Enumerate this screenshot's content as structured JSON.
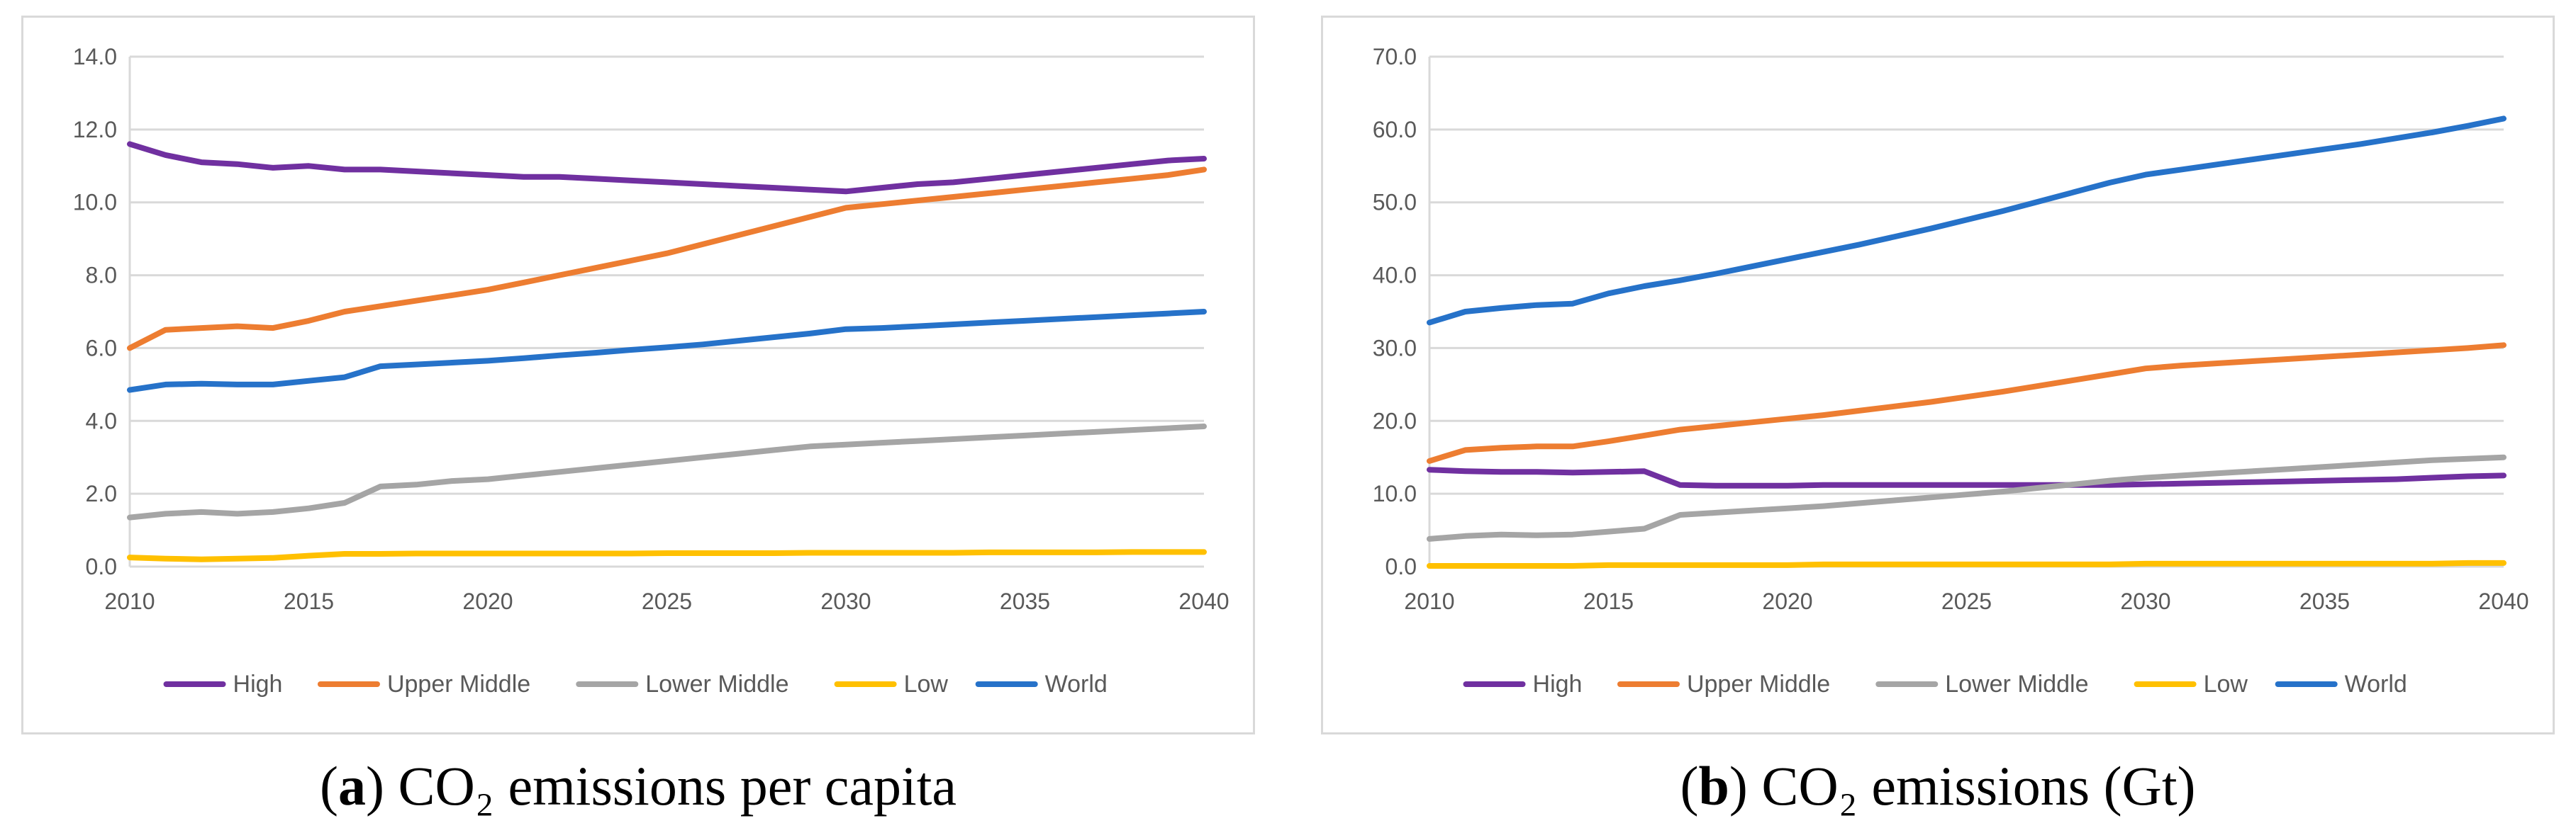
{
  "chart_data": [
    {
      "type": "line",
      "panel_letter": "a",
      "caption_text": "CO₂ emissions per capita",
      "x": [
        2010,
        2011,
        2012,
        2013,
        2014,
        2015,
        2016,
        2017,
        2018,
        2019,
        2020,
        2021,
        2022,
        2023,
        2024,
        2025,
        2026,
        2027,
        2028,
        2029,
        2030,
        2031,
        2032,
        2033,
        2034,
        2035,
        2036,
        2037,
        2038,
        2039,
        2040
      ],
      "xlim": [
        2010,
        2040
      ],
      "xticks": [
        "2010",
        "2015",
        "2020",
        "2025",
        "2030",
        "2035",
        "2040"
      ],
      "ylim": [
        0,
        14
      ],
      "yticks": [
        "0.0",
        "2.0",
        "4.0",
        "6.0",
        "8.0",
        "10.0",
        "12.0",
        "14.0"
      ],
      "grid": true,
      "legend_position": "bottom",
      "series": [
        {
          "name": "High",
          "color": "#7030a0",
          "values": [
            11.6,
            11.3,
            11.1,
            11.05,
            10.95,
            11.0,
            10.9,
            10.9,
            10.85,
            10.8,
            10.75,
            10.7,
            10.7,
            10.65,
            10.6,
            10.55,
            10.5,
            10.45,
            10.4,
            10.35,
            10.3,
            10.4,
            10.5,
            10.55,
            10.65,
            10.75,
            10.85,
            10.95,
            11.05,
            11.15,
            11.2
          ]
        },
        {
          "name": "Upper Middle",
          "color": "#ed7d31",
          "values": [
            6.0,
            6.5,
            6.55,
            6.6,
            6.55,
            6.75,
            7.0,
            7.15,
            7.3,
            7.45,
            7.6,
            7.8,
            8.0,
            8.2,
            8.4,
            8.6,
            8.85,
            9.1,
            9.35,
            9.6,
            9.85,
            9.95,
            10.05,
            10.15,
            10.25,
            10.35,
            10.45,
            10.55,
            10.65,
            10.75,
            10.9
          ]
        },
        {
          "name": "Lower Middle",
          "color": "#a5a5a5",
          "values": [
            1.35,
            1.45,
            1.5,
            1.45,
            1.5,
            1.6,
            1.75,
            2.2,
            2.25,
            2.35,
            2.4,
            2.5,
            2.6,
            2.7,
            2.8,
            2.9,
            3.0,
            3.1,
            3.2,
            3.3,
            3.35,
            3.4,
            3.45,
            3.5,
            3.55,
            3.6,
            3.65,
            3.7,
            3.75,
            3.8,
            3.85
          ]
        },
        {
          "name": "Low",
          "color": "#ffc000",
          "values": [
            0.25,
            0.22,
            0.2,
            0.22,
            0.24,
            0.3,
            0.35,
            0.35,
            0.36,
            0.36,
            0.36,
            0.36,
            0.36,
            0.36,
            0.36,
            0.37,
            0.37,
            0.37,
            0.37,
            0.38,
            0.38,
            0.38,
            0.38,
            0.38,
            0.39,
            0.39,
            0.39,
            0.39,
            0.4,
            0.4,
            0.4
          ]
        },
        {
          "name": "World",
          "color": "#2672c9",
          "values": [
            4.85,
            5.0,
            5.02,
            5.0,
            5.0,
            5.1,
            5.2,
            5.5,
            5.55,
            5.6,
            5.65,
            5.72,
            5.8,
            5.87,
            5.95,
            6.02,
            6.1,
            6.2,
            6.3,
            6.4,
            6.52,
            6.55,
            6.6,
            6.65,
            6.7,
            6.75,
            6.8,
            6.85,
            6.9,
            6.95,
            7.0
          ]
        }
      ]
    },
    {
      "type": "line",
      "panel_letter": "b",
      "caption_text": "CO₂ emissions (Gt)",
      "x": [
        2010,
        2011,
        2012,
        2013,
        2014,
        2015,
        2016,
        2017,
        2018,
        2019,
        2020,
        2021,
        2022,
        2023,
        2024,
        2025,
        2026,
        2027,
        2028,
        2029,
        2030,
        2031,
        2032,
        2033,
        2034,
        2035,
        2036,
        2037,
        2038,
        2039,
        2040
      ],
      "xlim": [
        2010,
        2040
      ],
      "xticks": [
        "2010",
        "2015",
        "2020",
        "2025",
        "2030",
        "2035",
        "2040"
      ],
      "ylim": [
        0,
        70
      ],
      "yticks": [
        "0.0",
        "10.0",
        "20.0",
        "30.0",
        "40.0",
        "50.0",
        "60.0",
        "70.0"
      ],
      "grid": true,
      "legend_position": "bottom",
      "series": [
        {
          "name": "High",
          "color": "#7030a0",
          "values": [
            13.3,
            13.1,
            13.0,
            13.0,
            12.9,
            13.0,
            13.1,
            11.2,
            11.1,
            11.1,
            11.1,
            11.2,
            11.2,
            11.2,
            11.2,
            11.2,
            11.2,
            11.2,
            11.2,
            11.2,
            11.3,
            11.4,
            11.5,
            11.6,
            11.7,
            11.8,
            11.9,
            12.0,
            12.2,
            12.4,
            12.5
          ]
        },
        {
          "name": "Upper Middle",
          "color": "#ed7d31",
          "values": [
            14.5,
            16.0,
            16.3,
            16.5,
            16.5,
            17.2,
            18.0,
            18.8,
            19.3,
            19.8,
            20.3,
            20.8,
            21.4,
            22.0,
            22.6,
            23.3,
            24.0,
            24.8,
            25.6,
            26.4,
            27.2,
            27.6,
            27.9,
            28.2,
            28.5,
            28.8,
            29.1,
            29.4,
            29.7,
            30.0,
            30.4
          ]
        },
        {
          "name": "Lower Middle",
          "color": "#a5a5a5",
          "values": [
            3.8,
            4.2,
            4.4,
            4.3,
            4.4,
            4.8,
            5.2,
            7.1,
            7.4,
            7.7,
            8.0,
            8.3,
            8.7,
            9.1,
            9.5,
            9.9,
            10.3,
            10.8,
            11.3,
            11.8,
            12.2,
            12.5,
            12.8,
            13.1,
            13.4,
            13.7,
            14.0,
            14.3,
            14.6,
            14.8,
            15.0
          ]
        },
        {
          "name": "Low",
          "color": "#ffc000",
          "values": [
            0.1,
            0.1,
            0.1,
            0.1,
            0.1,
            0.2,
            0.2,
            0.2,
            0.2,
            0.2,
            0.2,
            0.3,
            0.3,
            0.3,
            0.3,
            0.3,
            0.3,
            0.3,
            0.3,
            0.3,
            0.4,
            0.4,
            0.4,
            0.4,
            0.4,
            0.4,
            0.4,
            0.4,
            0.4,
            0.5,
            0.5
          ]
        },
        {
          "name": "World",
          "color": "#2672c9",
          "values": [
            33.5,
            35.0,
            35.5,
            35.9,
            36.1,
            37.5,
            38.5,
            39.3,
            40.2,
            41.2,
            42.2,
            43.2,
            44.2,
            45.3,
            46.4,
            47.6,
            48.8,
            50.1,
            51.4,
            52.7,
            53.8,
            54.5,
            55.2,
            55.9,
            56.6,
            57.3,
            58.0,
            58.8,
            59.6,
            60.5,
            61.5
          ]
        }
      ]
    }
  ]
}
